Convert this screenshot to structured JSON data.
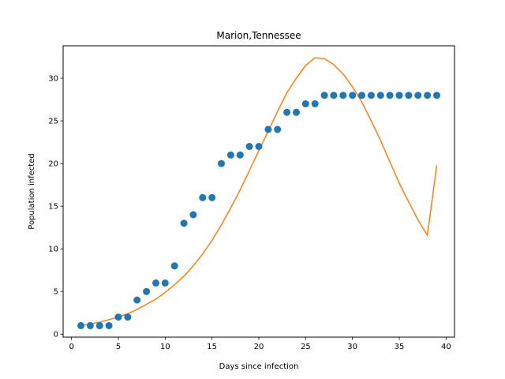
{
  "chart_data": {
    "type": "scatter",
    "title": "Marion,Tennessee",
    "xlabel": "Days since infection",
    "ylabel": "Population infected",
    "xlim": [
      -0.9,
      40.9
    ],
    "ylim": [
      -0.35,
      33.8
    ],
    "xticks": [
      0,
      5,
      10,
      15,
      20,
      25,
      30,
      35,
      40
    ],
    "yticks": [
      0,
      5,
      10,
      15,
      20,
      25,
      30
    ],
    "grid": false,
    "series": [
      {
        "kind": "scatter",
        "color": "#1f77b4",
        "x": [
          1,
          2,
          3,
          4,
          5,
          6,
          7,
          8,
          9,
          10,
          11,
          12,
          13,
          14,
          15,
          16,
          17,
          18,
          19,
          20,
          21,
          22,
          23,
          24,
          25,
          26,
          27,
          28,
          29,
          30,
          31,
          32,
          33,
          34,
          35,
          36,
          37,
          38,
          39
        ],
        "y": [
          1,
          1,
          1,
          1,
          2,
          2,
          4,
          5,
          6,
          6,
          8,
          13,
          14,
          16,
          16,
          20,
          21,
          21,
          22,
          22,
          24,
          24,
          26,
          26,
          27,
          27,
          28,
          28,
          28,
          28,
          28,
          28,
          28,
          28,
          28,
          28,
          28,
          28,
          28
        ]
      },
      {
        "kind": "line",
        "color": "#ff7f0e",
        "x": [
          1,
          2,
          3,
          4,
          5,
          6,
          7,
          8,
          9,
          10,
          11,
          12,
          13,
          14,
          15,
          16,
          17,
          18,
          19,
          20,
          21,
          22,
          23,
          24,
          25,
          26,
          27,
          28,
          29,
          30,
          31,
          32,
          33,
          34,
          35,
          36,
          37,
          38,
          39
        ],
        "y": [
          1.0,
          1.2,
          1.4,
          1.7,
          2.0,
          2.4,
          2.9,
          3.5,
          4.1,
          4.9,
          5.8,
          6.8,
          8.0,
          9.4,
          11.0,
          12.8,
          14.8,
          16.9,
          19.2,
          21.5,
          23.8,
          26.1,
          28.3,
          30.0,
          31.5,
          32.4,
          32.3,
          31.6,
          30.5,
          29.0,
          27.2,
          25.0,
          22.7,
          20.2,
          17.7,
          15.5,
          13.4,
          11.6,
          19.8
        ]
      }
    ]
  }
}
